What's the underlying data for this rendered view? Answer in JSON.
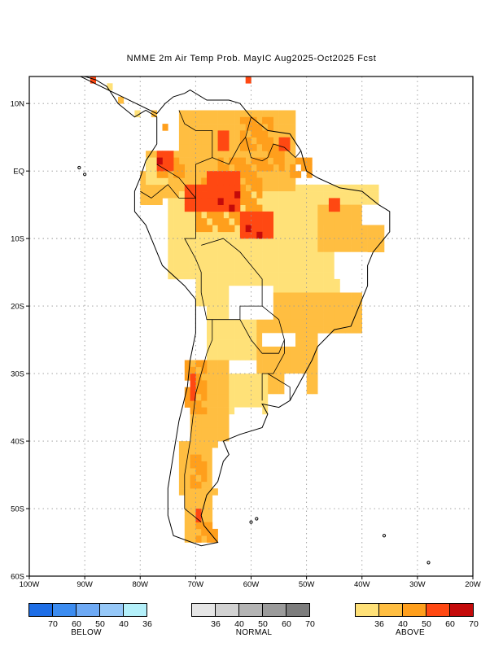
{
  "title": "NMME 2m Air Temp Prob. MayIC  Aug2025-Oct2025 Fcst",
  "map": {
    "lon_labels": [
      "100W",
      "90W",
      "80W",
      "70W",
      "60W",
      "50W",
      "40W",
      "30W",
      "20W"
    ],
    "lat_labels": [
      "10N",
      "EQ",
      "10S",
      "20S",
      "30S",
      "40S",
      "50S",
      "60S"
    ],
    "lon_range": [
      -100,
      -20
    ],
    "lat_range": [
      -60,
      14
    ],
    "gridlines": "dotted"
  },
  "legend": {
    "below": {
      "name": "BELOW",
      "colors": [
        "#1e6ee6",
        "#3c8cf0",
        "#6eaaf5",
        "#96c8f8",
        "#b4f0fa"
      ],
      "tick_labels": [
        "70",
        "60",
        "50",
        "40",
        "36"
      ]
    },
    "normal": {
      "name": "NORMAL",
      "colors": [
        "#e6e6e6",
        "#d2d2d2",
        "#b4b4b4",
        "#9b9b9b",
        "#7d7d7d"
      ],
      "tick_labels": [
        "36",
        "40",
        "50",
        "60",
        "70"
      ]
    },
    "above": {
      "name": "ABOVE",
      "colors": [
        "#ffe178",
        "#ffbe41",
        "#ff9f1c",
        "#ff4812",
        "#c40a0a"
      ],
      "tick_labels": [
        "36",
        "40",
        "50",
        "60",
        "70"
      ]
    }
  }
}
